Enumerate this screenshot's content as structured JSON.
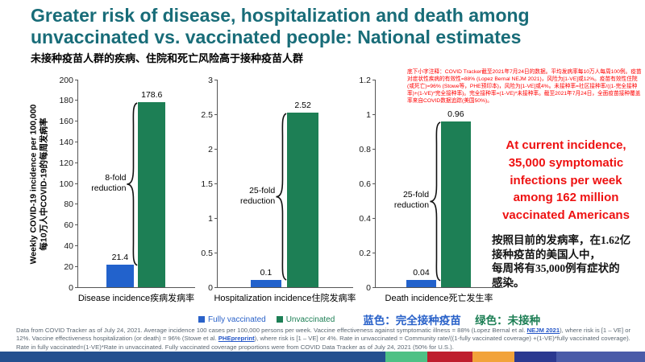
{
  "header": {
    "title": "Greater risk of disease, hospitalization and death among unvaccinated vs. vaccinated people: National estimates",
    "subtitle_zh": "未接种疫苗人群的疾病、住院和死亡风险高于接种疫苗人群"
  },
  "notes_zh": "底下小字注释：COVID Tracker截至2021年7月24日的数据。平均发病率每10万人每周100例。疫苗对症状性疾病的有效性=88% (Lopez Bernal NEJM 2021)，风险为[1-VE]或12%。疫苗有效性住院(或死亡)=96% (Stowe等，PHE预印本)，风险为[1-VE]或4%。未接种率=社区接种率/((1-完全接种率)+(1-VE)*完全接种率)。完全接种率=(1-VE)*未接种率。截至2021年7月24日，全面疫苗接种覆盖率来自COVID数据追踪(美国50%)。",
  "callout": {
    "text_en": "At current incidence, 35,000 symptomatic infections per week among 162 million vaccinated Americans",
    "text_zh": "按照目前的发病率，在1.62亿\n接种疫苗的美国人中，\n每周将有35,000例有症状的\n感染。"
  },
  "legend": {
    "items": [
      {
        "label": "Fully vaccinated",
        "color": "#2a62c9"
      },
      {
        "label": "Unvaccinated",
        "color": "#1d7f55"
      }
    ],
    "zh_blue": "蓝色：完全接种疫苗",
    "zh_green": "绿色：未接种"
  },
  "chart_data": [
    {
      "type": "bar",
      "categories": [
        "Fully vaccinated",
        "Unvaccinated"
      ],
      "values": [
        21.4,
        178.6
      ],
      "bar_colors": [
        "#2262cc",
        "#1d7f55"
      ],
      "ylim": [
        0,
        200
      ],
      "ytick_step": 20,
      "annotation": "8-fold reduction",
      "xlabel": "Disease incidence疾病发病率",
      "ylabel_line1": "Weekly COVID-19 incidence per 100,000",
      "ylabel_line2": "每10万人中COVID-19的每周发病率"
    },
    {
      "type": "bar",
      "categories": [
        "Fully vaccinated",
        "Unvaccinated"
      ],
      "values": [
        0.1,
        2.52
      ],
      "bar_colors": [
        "#2262cc",
        "#1d7f55"
      ],
      "ylim": [
        0,
        3
      ],
      "ytick_step": 0.5,
      "annotation": "25-fold reduction",
      "xlabel": "Hospitalization incidence住院发病率"
    },
    {
      "type": "bar",
      "categories": [
        "Fully vaccinated",
        "Unvaccinated"
      ],
      "values": [
        0.04,
        0.96
      ],
      "bar_colors": [
        "#2262cc",
        "#1d7f55"
      ],
      "ylim": [
        0,
        1.2
      ],
      "ytick_step": 0.2,
      "annotation": "25-fold reduction",
      "xlabel": "Death incidence死亡发生率"
    }
  ],
  "footer": {
    "runs": [
      {
        "text": "Data from COVID Tracker as of July 24, 2021. Average incidence 100 cases per 100,000 persons per week. Vaccine effectiveness against symptomatic illness = 88% (Lopez Bernal et al. "
      },
      {
        "text": "NEJM 2021",
        "link": true
      },
      {
        "text": "), where risk is [1 – VE] or 12%. Vaccine effectiveness hospitalization (or death) = 96% (Stowe et al. "
      },
      {
        "text": "PHEpreprint",
        "link": true
      },
      {
        "text": "), where risk is [1 – VE] or 4%. Rate in unvaccinated = Community rate/((1-fully vaccinated coverage) +(1-VE)*fully vaccinated coverage). Rate in fully vaccinated=(1-VE)*Rate in unvaccinated. Fully vaccinated coverage proportions were from COVID Data Tracker as of July 24, 2021 (50% for U.S.)."
      }
    ]
  },
  "bottom_bar": [
    {
      "color": "#24508f",
      "width_pct": 59.8
    },
    {
      "color": "#4ec185",
      "width_pct": 6.5
    },
    {
      "color": "#be1e2d",
      "width_pct": 6.9
    },
    {
      "color": "#f2a33a",
      "width_pct": 6.5
    },
    {
      "color": "#2b3990",
      "width_pct": 6.6
    },
    {
      "color": "#4a5ba8",
      "width_pct": 13.7
    }
  ],
  "colors": {
    "title_teal": "#186c78",
    "bar_blue": "#2262cc",
    "bar_green": "#1d7f55",
    "callout_red": "#ee1111",
    "notes_red": "#ff0000",
    "link_blue": "#2456c7",
    "footer_gray": "#5c6873"
  }
}
